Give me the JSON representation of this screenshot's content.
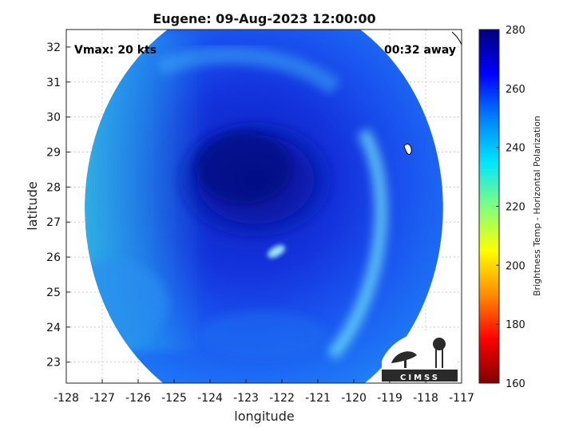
{
  "chart_data": {
    "type": "heatmap",
    "title": "Eugene: 09-Aug-2023 12:00:00",
    "xlabel": "longitude",
    "ylabel": "latitude",
    "xlim": [
      -128,
      -117
    ],
    "ylim": [
      22.4,
      32.5
    ],
    "x_ticks": [
      -128,
      -127,
      -126,
      -125,
      -124,
      -123,
      -122,
      -121,
      -120,
      -119,
      -118,
      -117
    ],
    "y_ticks": [
      23,
      24,
      25,
      26,
      27,
      28,
      29,
      30,
      31,
      32
    ],
    "colorbar": {
      "label": "Brightness Temp - Horizontal Polarization",
      "range": [
        160,
        280
      ],
      "ticks": [
        160,
        180,
        200,
        220,
        240,
        260,
        280
      ],
      "colormap": [
        "#7f0000",
        "#ff0000",
        "#ffaa00",
        "#ffff00",
        "#7fff7f",
        "#00e5ff",
        "#0080ff",
        "#0000ff",
        "#00007f"
      ]
    },
    "swath": {
      "center_lon": -122.5,
      "center_lat": 27.4,
      "radius_deg": 5.6
    },
    "features": [
      {
        "name": "storm_core",
        "lon": -123.0,
        "lat": 28.0,
        "brightness_temp": 272
      },
      {
        "name": "warm_spot",
        "lon": -122.1,
        "lat": 26.2,
        "brightness_temp": 248
      },
      {
        "name": "western_edge",
        "lon": -127.6,
        "lat": 27.0,
        "brightness_temp": 232
      }
    ],
    "grid": true
  },
  "annotations": {
    "vmax": "Vmax: 20 kts",
    "away": "00:32 away"
  },
  "logo": {
    "text": "CIMSS"
  }
}
